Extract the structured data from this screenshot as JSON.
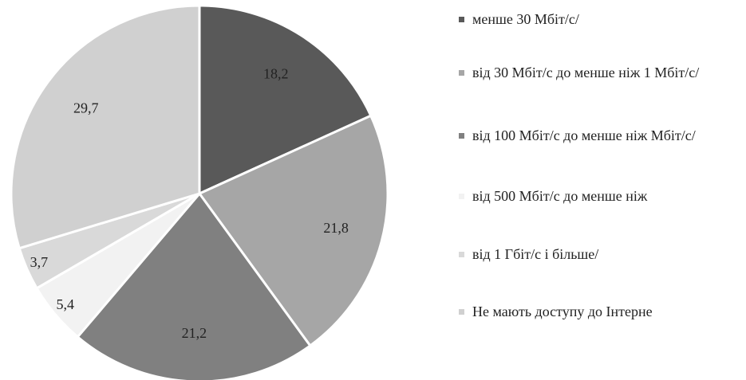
{
  "chart_data": {
    "type": "pie",
    "categories": [
      "менше 30 Мбіт/с/",
      "від 30 Мбіт/с до менше ніж 1 Мбіт/с/",
      "від 100 Мбіт/с до менше ніж Мбіт/с/",
      "від 500 Мбіт/с до менше ніж",
      "від 1 Гбіт/с і більше/",
      "Не мають доступу до Інтерне"
    ],
    "values": [
      18.2,
      21.8,
      21.2,
      5.4,
      3.7,
      29.7
    ],
    "value_labels": [
      "18,2",
      "21,8",
      "21,2",
      "5,4",
      "3,7",
      "29,7"
    ],
    "colors": [
      "#595959",
      "#a6a6a6",
      "#808080",
      "#f2f2f2",
      "#d9d9d9",
      "#d0d0d0"
    ],
    "legend": "right"
  }
}
